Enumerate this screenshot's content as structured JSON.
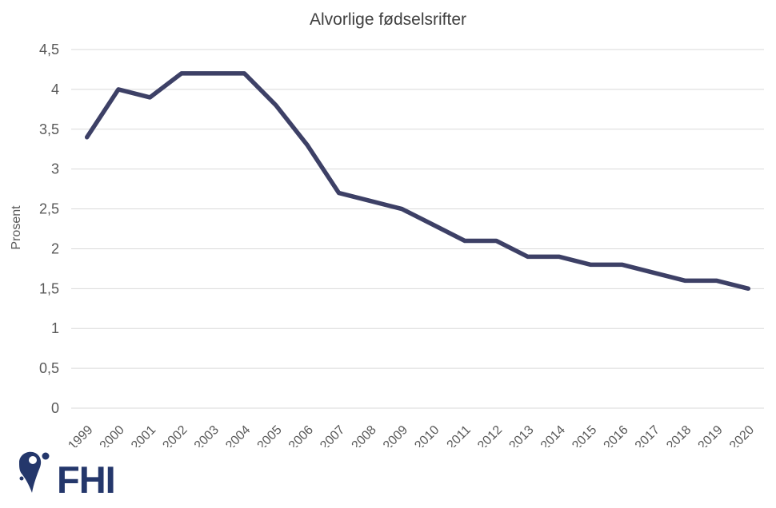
{
  "chart_data": {
    "type": "line",
    "title": "Alvorlige fødselsrifter",
    "ylabel": "Prosent",
    "xlabel": "",
    "categories": [
      "1999",
      "2000",
      "2001",
      "2002",
      "2003",
      "2004",
      "2005",
      "2006",
      "2007",
      "2008",
      "2009",
      "2010",
      "2011",
      "2012",
      "2013",
      "2014",
      "2015",
      "2016",
      "2017",
      "2018",
      "2019",
      "2020"
    ],
    "series": [
      {
        "name": "Alvorlige fødselsrifter",
        "values": [
          3.4,
          4.0,
          3.9,
          4.2,
          4.2,
          4.2,
          3.8,
          3.3,
          2.7,
          2.6,
          2.5,
          2.3,
          2.1,
          2.1,
          1.9,
          1.9,
          1.8,
          1.8,
          1.7,
          1.6,
          1.6,
          1.5
        ]
      }
    ],
    "ylim": [
      0,
      4.5
    ],
    "yticks": [
      {
        "value": 0,
        "label": "0"
      },
      {
        "value": 0.5,
        "label": "0,5"
      },
      {
        "value": 1,
        "label": "1"
      },
      {
        "value": 1.5,
        "label": "1,5"
      },
      {
        "value": 2,
        "label": "2"
      },
      {
        "value": 2.5,
        "label": "2,5"
      },
      {
        "value": 3,
        "label": "3"
      },
      {
        "value": 3.5,
        "label": "3,5"
      },
      {
        "value": 4,
        "label": "4"
      },
      {
        "value": 4.5,
        "label": "4,5"
      }
    ],
    "grid": "horizontal",
    "legend": "none",
    "x_label_rotation": -45,
    "colors": {
      "line": "#3D4066",
      "gridline": "#D9D9D9",
      "tick_label": "#595959",
      "title": "#404040"
    }
  },
  "logo": {
    "text": "FHI",
    "color": "#24376B"
  }
}
